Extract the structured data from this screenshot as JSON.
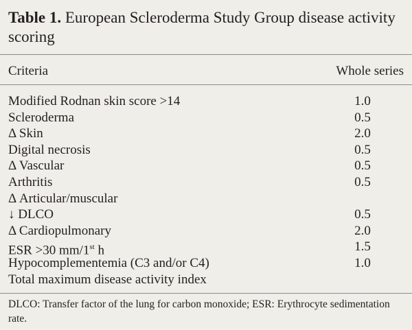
{
  "table": {
    "label": "Table 1.",
    "title": "European Scleroderma Study Group disease activity scoring",
    "header": [
      "Criteria",
      "Whole series"
    ],
    "rows": [
      {
        "criteria": "Modified Rodnan skin score >14",
        "value": "1.0"
      },
      {
        "criteria": "Scleroderma",
        "value": "0.5"
      },
      {
        "criteria": "Δ Skin",
        "value": "2.0"
      },
      {
        "criteria": "Digital necrosis",
        "value": "0.5"
      },
      {
        "criteria": "Δ Vascular",
        "value": "0.5"
      },
      {
        "criteria": "Arthritis",
        "value": "0.5"
      },
      {
        "criteria": "Δ Articular/muscular"
      },
      {
        "criteria": "↓ DLCO",
        "value": "0.5"
      },
      {
        "criteria": "Δ Cardiopulmonary",
        "value": "2.0"
      },
      {
        "criteria": "ESR >30 mm/1",
        "criteria_sup": "st",
        "criteria_end": " h",
        "value": "1.5"
      },
      {
        "criteria": "Hypocomplementemia (C3 and/or C4)",
        "value": "1.0"
      },
      {
        "criteria": "Total maximum disease activity index"
      }
    ],
    "footnote": "DLCO: Transfer factor of the lung for carbon monoxide; ESR: Erythrocyte sedimentation rate."
  }
}
